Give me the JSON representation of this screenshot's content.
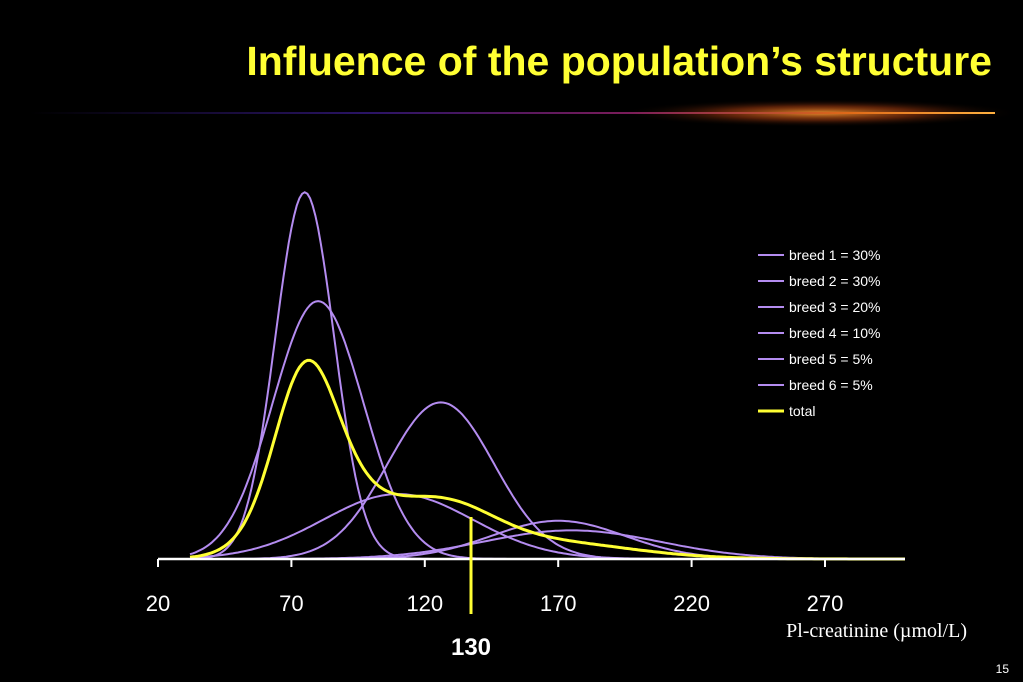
{
  "slide": {
    "title": "Influence of the population’s structure",
    "page_number": "15"
  },
  "colors": {
    "title": "#ffff33",
    "component": "#b48cf0",
    "total": "#ffff33",
    "axis": "#ffffff"
  },
  "chart_data": {
    "type": "line",
    "title": "",
    "xlabel": "Pl-creatinine (µmol/L)",
    "ylabel": "",
    "xlim": [
      20,
      300
    ],
    "ylim": [
      0,
      1
    ],
    "xticks": [
      20,
      70,
      120,
      170,
      220,
      270
    ],
    "grid": false,
    "legend_position": "right",
    "marker": {
      "x": 130,
      "label": "130"
    },
    "series": [
      {
        "name": "breed 1 = 30%",
        "mean": 75,
        "sd": 11,
        "peak": 0.96,
        "color": "#b48cf0"
      },
      {
        "name": "breed 2 = 30%",
        "mean": 80,
        "sd": 17,
        "peak": 0.675,
        "color": "#b48cf0"
      },
      {
        "name": "breed 3 = 20%",
        "mean": 126,
        "sd": 20,
        "peak": 0.41,
        "color": "#b48cf0"
      },
      {
        "name": "breed 4 = 10%",
        "mean": 110,
        "sd": 28,
        "peak": 0.17,
        "color": "#b48cf0"
      },
      {
        "name": "breed 5 = 5%",
        "mean": 170,
        "sd": 25,
        "peak": 0.1,
        "color": "#b48cf0"
      },
      {
        "name": "breed 6 = 5%",
        "mean": 175,
        "sd": 33,
        "peak": 0.075,
        "color": "#b48cf0"
      },
      {
        "name": "total",
        "type": "mixture",
        "peak": 0.52,
        "color": "#ffff33"
      }
    ]
  }
}
